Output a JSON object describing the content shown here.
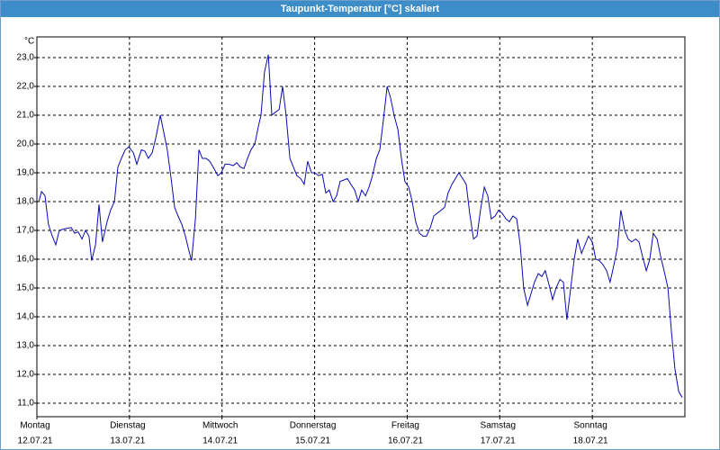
{
  "chart_data": {
    "type": "line",
    "title": "Taupunkt-Temperatur [°C] skaliert",
    "y_unit": "°C",
    "xlim": [
      0,
      168
    ],
    "ylim": [
      10.53,
      23.72
    ],
    "xticks": [
      {
        "value": 0,
        "label": [
          "Montag",
          "12.07.21"
        ]
      },
      {
        "value": 24,
        "label": [
          "Dienstag",
          "13.07.21"
        ]
      },
      {
        "value": 48,
        "label": [
          "Mittwoch",
          "14.07.21"
        ]
      },
      {
        "value": 72,
        "label": [
          "Donnerstag",
          "15.07.21"
        ]
      },
      {
        "value": 96,
        "label": [
          "Freitag",
          "16.07.21"
        ]
      },
      {
        "value": 120,
        "label": [
          "Samstag",
          "17.07.21"
        ]
      },
      {
        "value": 144,
        "label": [
          "Sonntag",
          "18.07.21"
        ]
      }
    ],
    "yticks": [
      {
        "value": 11,
        "label": "11,0"
      },
      {
        "value": 12,
        "label": "12,0"
      },
      {
        "value": 13,
        "label": "13,0"
      },
      {
        "value": 14,
        "label": "14,0"
      },
      {
        "value": 15,
        "label": "15,0"
      },
      {
        "value": 16,
        "label": "16,0"
      },
      {
        "value": 17,
        "label": "17,0"
      },
      {
        "value": 18,
        "label": "18,0"
      },
      {
        "value": 19,
        "label": "19,0"
      },
      {
        "value": 20,
        "label": "20,0"
      },
      {
        "value": 21,
        "label": "21,0"
      },
      {
        "value": 22,
        "label": "22,0"
      },
      {
        "value": 23,
        "label": "23,0"
      }
    ],
    "grid": true,
    "x": [
      0.5,
      1.2,
      2.1,
      3.0,
      4.0,
      4.9,
      5.8,
      7.0,
      8.9,
      9.8,
      10.7,
      11.7,
      12.6,
      13.5,
      14.2,
      15.2,
      16.1,
      17.0,
      18.2,
      19.1,
      20.1,
      21.0,
      21.9,
      22.9,
      23.8,
      25.0,
      25.9,
      27.1,
      28.0,
      28.9,
      29.9,
      30.8,
      32.0,
      32.9,
      33.8,
      34.8,
      35.7,
      36.6,
      37.6,
      38.5,
      39.4,
      40.1,
      41.1,
      42.0,
      42.9,
      43.9,
      44.8,
      45.7,
      46.9,
      47.8,
      48.8,
      49.7,
      50.9,
      51.8,
      52.7,
      53.7,
      54.6,
      55.5,
      56.5,
      57.4,
      58.1,
      59.0,
      60.0,
      60.9,
      61.8,
      62.8,
      63.7,
      64.6,
      65.6,
      66.5,
      67.4,
      68.4,
      69.3,
      70.2,
      71.2,
      72.1,
      73.0,
      74.0,
      74.9,
      75.8,
      76.8,
      77.7,
      78.6,
      79.6,
      80.5,
      81.4,
      82.4,
      83.3,
      84.2,
      85.2,
      86.1,
      87.0,
      88.0,
      88.9,
      89.8,
      90.8,
      91.7,
      92.6,
      93.6,
      94.5,
      95.4,
      96.4,
      97.3,
      98.2,
      99.2,
      100.1,
      101.0,
      102.0,
      102.9,
      103.8,
      104.8,
      105.7,
      106.6,
      107.6,
      108.5,
      109.4,
      110.4,
      111.3,
      112.2,
      113.2,
      114.1,
      115.0,
      116.0,
      116.9,
      117.8,
      118.8,
      119.7,
      120.6,
      121.6,
      122.5,
      123.4,
      124.4,
      125.3,
      126.2,
      127.2,
      128.1,
      129.0,
      130.0,
      130.9,
      131.8,
      132.8,
      133.7,
      134.6,
      135.6,
      136.5,
      137.4,
      138.4,
      139.3,
      140.2,
      141.2,
      142.1,
      143.0,
      144.0,
      144.9,
      145.8,
      146.8,
      147.7,
      148.6,
      149.6,
      150.5,
      151.4,
      152.4,
      153.3,
      154.2,
      155.2,
      156.1,
      157.0,
      158.0,
      158.9,
      159.8,
      160.8,
      161.7,
      162.6,
      163.6,
      164.5,
      165.4,
      166.4,
      167.3
    ],
    "series": [
      {
        "name": "Taupunkt-Temperatur",
        "color": "#0a0ab4",
        "values": [
          18.0,
          18.35,
          18.2,
          17.2,
          16.8,
          16.5,
          17.0,
          17.05,
          17.1,
          16.9,
          16.95,
          16.7,
          17.0,
          16.8,
          15.95,
          16.5,
          17.9,
          16.6,
          17.3,
          17.7,
          18.0,
          19.2,
          19.5,
          19.8,
          19.9,
          19.7,
          19.3,
          19.8,
          19.75,
          19.5,
          19.7,
          20.2,
          21.0,
          20.4,
          19.8,
          18.8,
          17.8,
          17.5,
          17.2,
          16.8,
          16.3,
          15.95,
          17.4,
          19.8,
          19.5,
          19.5,
          19.4,
          19.2,
          18.9,
          19.0,
          19.3,
          19.3,
          19.25,
          19.35,
          19.2,
          19.15,
          19.5,
          19.8,
          20.0,
          20.6,
          21.0,
          22.5,
          23.1,
          21.0,
          21.1,
          21.2,
          22.0,
          21.0,
          19.5,
          19.2,
          18.9,
          18.8,
          18.6,
          19.4,
          19.0,
          19.0,
          18.9,
          18.95,
          18.3,
          18.4,
          18.0,
          18.2,
          18.7,
          18.75,
          18.8,
          18.6,
          18.4,
          18.0,
          18.4,
          18.2,
          18.5,
          18.9,
          19.5,
          19.8,
          20.8,
          22.0,
          21.6,
          21.0,
          20.5,
          19.5,
          18.7,
          18.5,
          18.0,
          17.3,
          16.9,
          16.8,
          16.8,
          17.1,
          17.5,
          17.6,
          17.7,
          17.8,
          18.3,
          18.6,
          18.8,
          19.0,
          18.8,
          18.6,
          17.6,
          16.7,
          16.8,
          17.7,
          18.5,
          18.2,
          17.4,
          17.5,
          17.7,
          17.6,
          17.4,
          17.3,
          17.5,
          17.4,
          16.5,
          15.0,
          14.4,
          14.8,
          15.2,
          15.5,
          15.4,
          15.6,
          15.1,
          14.6,
          15.0,
          15.3,
          15.2,
          13.9,
          15.0,
          16.0,
          16.7,
          16.2,
          16.5,
          16.8,
          16.6,
          16.0,
          15.95,
          15.8,
          15.6,
          15.2,
          15.8,
          16.4,
          17.7,
          17.0,
          16.7,
          16.6,
          16.7,
          16.6,
          16.1,
          15.6,
          16.0,
          16.9,
          16.7,
          16.1,
          15.6,
          15.0,
          13.5,
          12.2,
          11.4,
          11.2
        ]
      }
    ]
  }
}
